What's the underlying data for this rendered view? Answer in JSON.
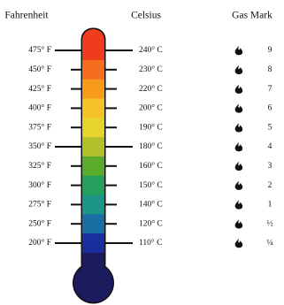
{
  "header": {
    "fahrenheit": "Fahrenheit",
    "celsius": "Celsius",
    "gas_mark": "Gas Mark"
  },
  "rows": [
    {
      "fahrenheit": "475° F",
      "celsius": "240° C",
      "gas_mark": "9"
    },
    {
      "fahrenheit": "450° F",
      "celsius": "230° C",
      "gas_mark": "8"
    },
    {
      "fahrenheit": "425° F",
      "celsius": "220° C",
      "gas_mark": "7"
    },
    {
      "fahrenheit": "400° F",
      "celsius": "200° C",
      "gas_mark": "6"
    },
    {
      "fahrenheit": "375° F",
      "celsius": "190° C",
      "gas_mark": "5"
    },
    {
      "fahrenheit": "350° F",
      "celsius": "180° C",
      "gas_mark": "4"
    },
    {
      "fahrenheit": "325° F",
      "celsius": "160° C",
      "gas_mark": "3"
    },
    {
      "fahrenheit": "300° F",
      "celsius": "150° C",
      "gas_mark": "2"
    },
    {
      "fahrenheit": "275° F",
      "celsius": "140° C",
      "gas_mark": "1"
    },
    {
      "fahrenheit": "250° F",
      "celsius": "120° C",
      "gas_mark": "½"
    },
    {
      "fahrenheit": "200° F",
      "celsius": "110° C",
      "gas_mark": "¼"
    }
  ]
}
